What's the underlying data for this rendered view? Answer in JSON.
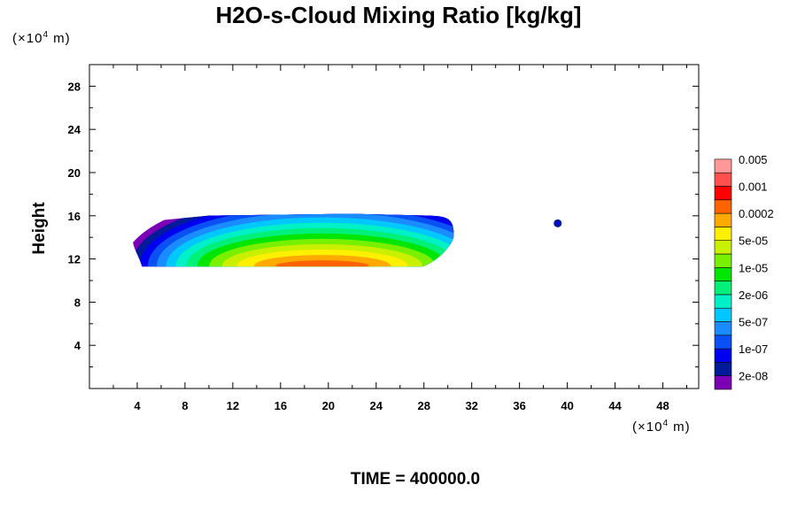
{
  "chart_data": {
    "type": "contour",
    "title": "H2O-s-Cloud Mixing Ratio [kg/kg]",
    "ylabel": "Height",
    "xlabel": "",
    "x_unit": {
      "prefix": "(×10",
      "exp": "4",
      "suffix": " m)"
    },
    "y_unit": {
      "prefix": "(×10",
      "exp": "4",
      "suffix": " m)"
    },
    "xlim": [
      0,
      51
    ],
    "ylim": [
      0,
      30
    ],
    "x_ticks": [
      4,
      8,
      12,
      16,
      20,
      24,
      28,
      32,
      36,
      40,
      44,
      48
    ],
    "y_ticks": [
      4,
      8,
      12,
      16,
      20,
      24,
      28
    ],
    "x_minor_step": 2,
    "y_minor_step": 2,
    "grid": false,
    "legend_position": "right",
    "colorbar": {
      "colors": [
        "#7b00b5",
        "#001a99",
        "#0000f0",
        "#0a50f5",
        "#1a8cff",
        "#00c8ff",
        "#00f0c8",
        "#00f07a",
        "#00e600",
        "#78f000",
        "#c8f000",
        "#fff000",
        "#ffaa00",
        "#ff6400",
        "#ff0000",
        "#ff5050",
        "#ff9999"
      ],
      "labels": [
        "2e-08",
        "1e-07",
        "5e-07",
        "2e-06",
        "1e-05",
        "5e-05",
        "0.0002",
        "0.001",
        "0.005"
      ]
    },
    "cloud_main": {
      "x_range": [
        3.6,
        30.5
      ],
      "y_range": [
        11.3,
        16.1
      ],
      "peak_color": "#ff6400",
      "peak_x": 19.5,
      "peak_y": 11.7
    },
    "cloud_small": {
      "x": 39.2,
      "y": 15.3,
      "color": "#001a99"
    },
    "time_label": "TIME = 400000.0"
  }
}
